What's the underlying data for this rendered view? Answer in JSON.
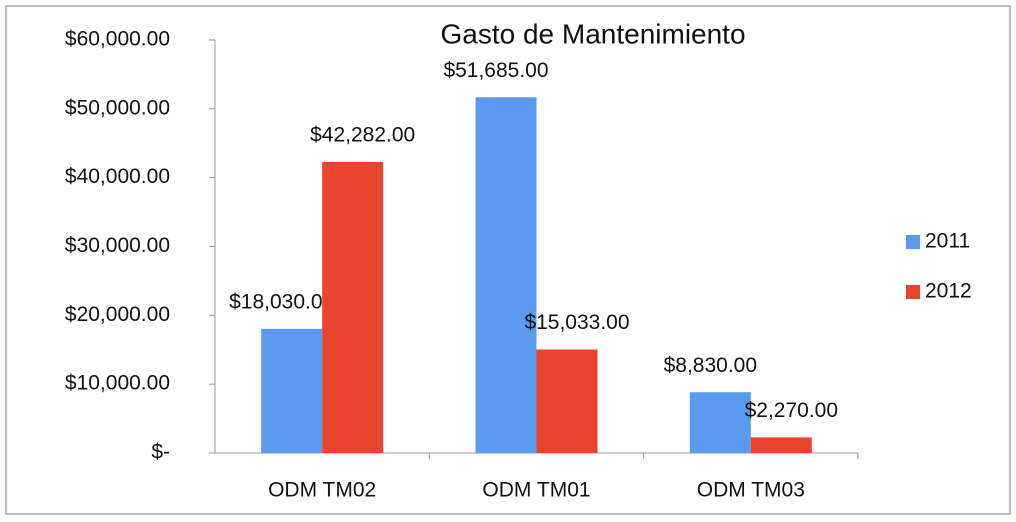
{
  "chart_data": {
    "type": "bar",
    "title": "Gasto de Mantenimiento",
    "categories": [
      "ODM TM02",
      "ODM TM01",
      "ODM TM03"
    ],
    "series": [
      {
        "name": "2011",
        "color": "#5b9bef",
        "values": [
          18030,
          51685,
          8830
        ],
        "value_labels": [
          "$18,030.00",
          "$51,685.00",
          "$8,830.00"
        ]
      },
      {
        "name": "2012",
        "color": "#e8432c",
        "values": [
          42282,
          15033,
          2270
        ],
        "value_labels": [
          "$42,282.00",
          "$15,033.00",
          "$2,270.00"
        ]
      }
    ],
    "ylim": [
      0,
      60000
    ],
    "yticks": [
      {
        "value": 0,
        "label": "$-"
      },
      {
        "value": 10000,
        "label": "$10,000.00"
      },
      {
        "value": 20000,
        "label": "$20,000.00"
      },
      {
        "value": 30000,
        "label": "$30,000.00"
      },
      {
        "value": 40000,
        "label": "$40,000.00"
      },
      {
        "value": 50000,
        "label": "$50,000.00"
      },
      {
        "value": 60000,
        "label": "$60,000.00"
      }
    ],
    "legend": "right"
  }
}
